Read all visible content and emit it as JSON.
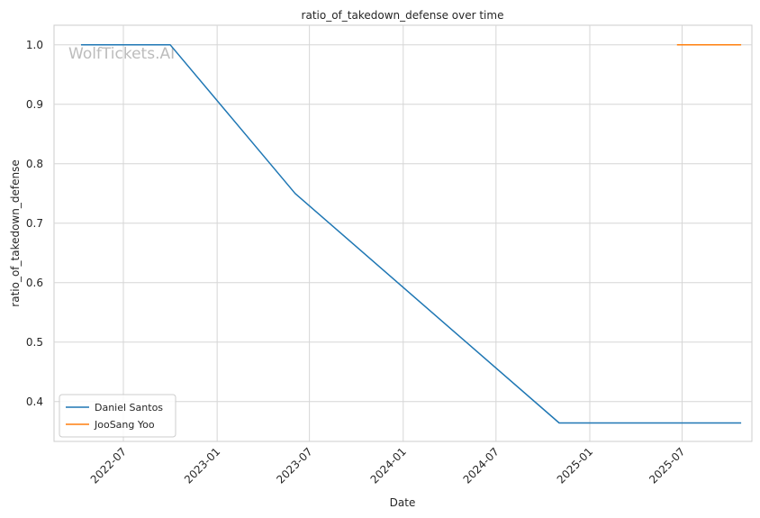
{
  "chart_data": {
    "type": "line",
    "title": "ratio_of_takedown_defense over time",
    "xlabel": "Date",
    "ylabel": "ratio_of_takedown_defense",
    "watermark": "WolfTickets.AI",
    "xlim": [
      "2022-02-15",
      "2025-11-15"
    ],
    "ylim": [
      0.333,
      1.033
    ],
    "x_ticks": [
      "2022-07",
      "2023-01",
      "2023-07",
      "2024-01",
      "2024-07",
      "2025-01",
      "2025-07"
    ],
    "y_ticks": [
      "0.4",
      "0.5",
      "0.6",
      "0.7",
      "0.8",
      "0.9",
      "1.0"
    ],
    "grid": true,
    "legend_position": "lower-left",
    "series": [
      {
        "name": "Daniel Santos",
        "color": "#1f77b4",
        "points": [
          {
            "x": "2022-04-09",
            "y": 1.0
          },
          {
            "x": "2022-10-01",
            "y": 1.0
          },
          {
            "x": "2023-06-03",
            "y": 0.75
          },
          {
            "x": "2024-11-02",
            "y": 0.364
          },
          {
            "x": "2025-10-25",
            "y": 0.364
          }
        ]
      },
      {
        "name": "JooSang Yoo",
        "color": "#ff7f0e",
        "points": [
          {
            "x": "2025-06-21",
            "y": 1.0
          },
          {
            "x": "2025-10-25",
            "y": 1.0
          }
        ]
      }
    ]
  }
}
